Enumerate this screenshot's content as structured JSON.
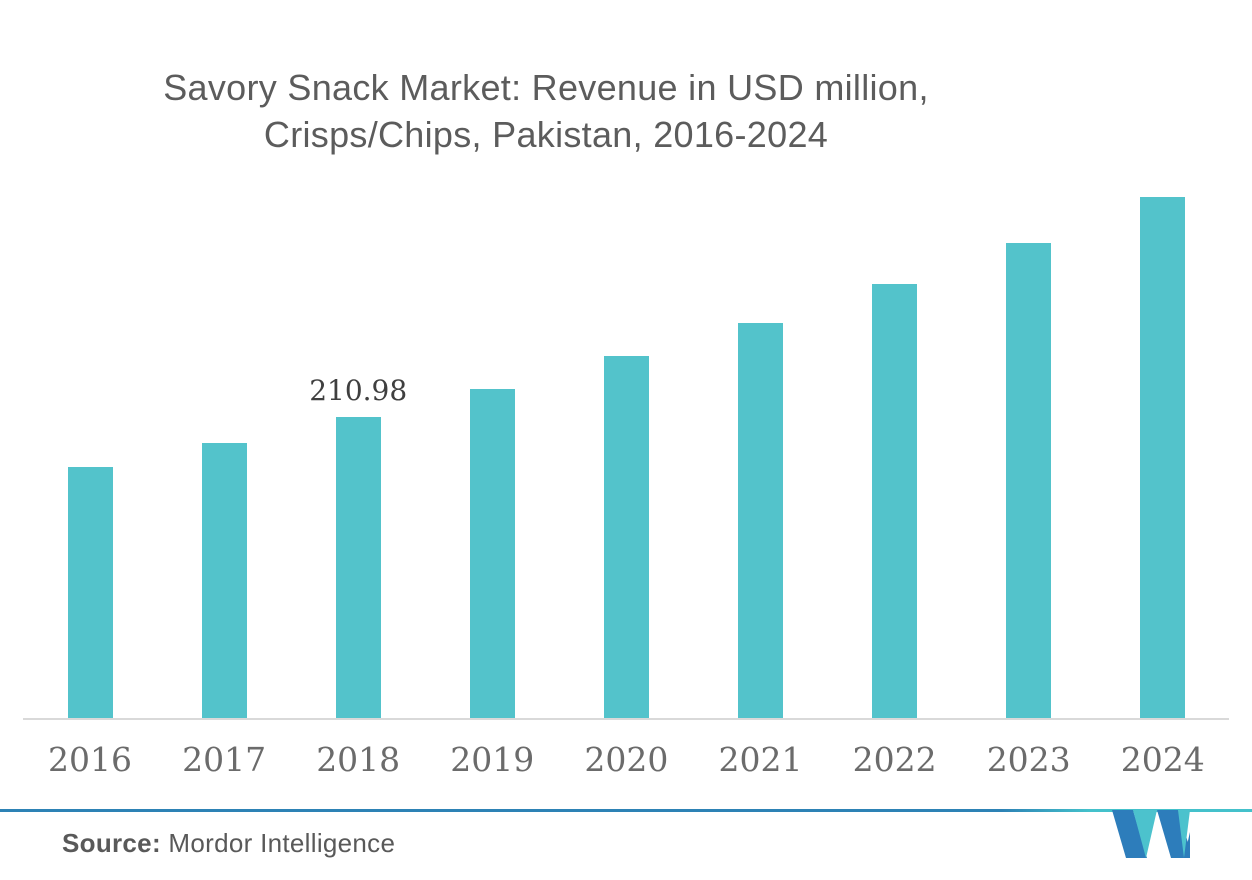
{
  "title": {
    "line1": "Savory Snack Market: Revenue in USD million,",
    "line2": "Crisps/Chips, Pakistan, 2016-2024"
  },
  "source": {
    "prefix": "Source:",
    "text": " Mordor Intelligence"
  },
  "logo": {
    "name": "mordor-intelligence-logo"
  },
  "colors": {
    "bar": "#53c3cb",
    "title_text": "#5c5c5c",
    "axis_label_text": "#6b6b6b",
    "data_label_text": "#3f3f3f",
    "axis_line": "#d9d9d9",
    "footer_line_blue": "#2d82b5",
    "footer_line_teal": "#44c1cb",
    "logo_blue": "#2d7dbb",
    "logo_teal": "#4cc2cd"
  },
  "chart_data": {
    "type": "bar",
    "title": "Savory Snack Market: Revenue in USD million, Crisps/Chips, Pakistan, 2016-2024",
    "categories": [
      "2016",
      "2017",
      "2018",
      "2019",
      "2020",
      "2021",
      "2022",
      "2023",
      "2024"
    ],
    "values": [
      176.0,
      192.8,
      210.98,
      230.6,
      253.8,
      276.9,
      304.3,
      333.0,
      365.2
    ],
    "data_labels": {
      "2018": "210.98"
    },
    "xlabel": "",
    "ylabel": "Revenue (USD million)",
    "ylim": [
      0,
      380
    ],
    "grid": false,
    "legend": "none",
    "bar_color": "#53c3cb"
  }
}
